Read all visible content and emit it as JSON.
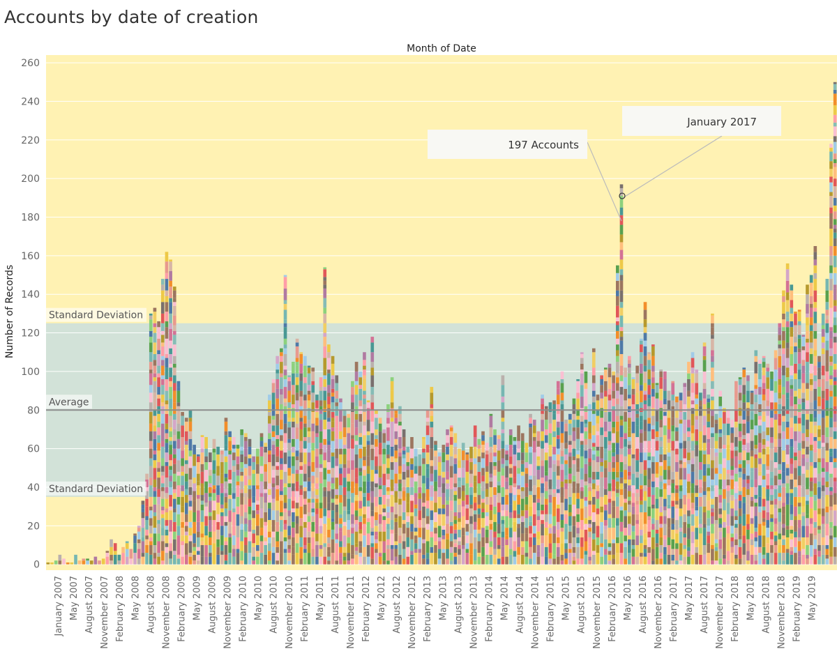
{
  "title": "Accounts by date of creation",
  "chart_data": {
    "type": "bar",
    "stacked": true,
    "title": "Accounts by date of creation",
    "column_header": "Month of Date",
    "xlabel": "",
    "ylabel": "Number of Records",
    "ylim": [
      -3,
      264
    ],
    "yticks": [
      0,
      20,
      40,
      60,
      80,
      100,
      120,
      140,
      160,
      180,
      200,
      220,
      240,
      260
    ],
    "grid": true,
    "x_tick_labels": [
      "January 2007",
      "May 2007",
      "August 2007",
      "November 2007",
      "February 2008",
      "May 2008",
      "August 2008",
      "November 2008",
      "February 2009",
      "May 2009",
      "August 2009",
      "November 2009",
      "February 2010",
      "May 2010",
      "August 2010",
      "November 2010",
      "February 2011",
      "May 2011",
      "August 2011",
      "November 2011",
      "February 2012",
      "May 2012",
      "August 2012",
      "November 2012",
      "February 2013",
      "May 2013",
      "August 2013",
      "November 2013",
      "February 2014",
      "May 2014",
      "August 2014",
      "November 2014",
      "February 2015",
      "May 2015",
      "August 2015",
      "November 2015",
      "February 2016",
      "May 2016",
      "August 2016",
      "November 2016",
      "February 2017",
      "May 2017",
      "August 2017",
      "November 2017",
      "February 2018",
      "May 2018",
      "August 2018",
      "November 2018",
      "February 2019",
      "May 2019"
    ],
    "reference_lines": [
      {
        "label": "Average",
        "value": 80
      },
      {
        "label": "Standard Deviation",
        "value": 125
      },
      {
        "label": "Standard Deviation",
        "value": 35
      }
    ],
    "annotations": [
      {
        "text": "197 Accounts"
      },
      {
        "text": "January 2017"
      }
    ],
    "bar_colors": [
      "#4e79a7",
      "#f28e2b",
      "#e15759",
      "#76b7b2",
      "#59a14f",
      "#edc948",
      "#b07aa1",
      "#ff9da7",
      "#9c755f",
      "#bab0ac",
      "#a0cbe8",
      "#ffbe7d",
      "#8cd17d",
      "#b6992d",
      "#f1ce63",
      "#499894",
      "#86bcb6",
      "#d37295",
      "#fabfd2",
      "#79706e",
      "#d4a6c8",
      "#9d7660",
      "#d7b5a6",
      "#e8998e"
    ],
    "band_colors": {
      "outside": "#fff2b3",
      "inside": "#d2e2d8",
      "average_line": "#8c8c8c"
    },
    "values": [
      1,
      1,
      2,
      5,
      3,
      1,
      1,
      5,
      2,
      3,
      3,
      2,
      4,
      2,
      3,
      7,
      13,
      11,
      5,
      9,
      12,
      8,
      16,
      20,
      33,
      47,
      130,
      133,
      126,
      148,
      162,
      158,
      144,
      95,
      79,
      76,
      80,
      62,
      57,
      67,
      66,
      58,
      65,
      61,
      59,
      76,
      69,
      66,
      62,
      70,
      68,
      65,
      56,
      60,
      68,
      63,
      88,
      96,
      108,
      112,
      150,
      98,
      105,
      117,
      110,
      108,
      103,
      102,
      88,
      97,
      154,
      114,
      108,
      98,
      86,
      80,
      78,
      95,
      105,
      100,
      110,
      85,
      118,
      80,
      76,
      70,
      83,
      97,
      80,
      82,
      70,
      61,
      66,
      60,
      57,
      66,
      80,
      92,
      64,
      58,
      62,
      70,
      72,
      68,
      60,
      63,
      58,
      61,
      72,
      65,
      69,
      63,
      78,
      70,
      67,
      98,
      62,
      70,
      66,
      72,
      68,
      63,
      78,
      75,
      69,
      88,
      82,
      84,
      85,
      95,
      100,
      75,
      78,
      86,
      96,
      110,
      100,
      83,
      112,
      88,
      98,
      102,
      104,
      100,
      155,
      197,
      102,
      108,
      97,
      103,
      117,
      136,
      110,
      114,
      94,
      101,
      100,
      90,
      95,
      87,
      89,
      94,
      105,
      110,
      101,
      89,
      115,
      88,
      130,
      78,
      90,
      81,
      80,
      75,
      95,
      97,
      102,
      98,
      90,
      111,
      106,
      108,
      104,
      100,
      111,
      125,
      142,
      156,
      145,
      131,
      132,
      119,
      145,
      150,
      165,
      108,
      130,
      148,
      218,
      250
    ]
  }
}
